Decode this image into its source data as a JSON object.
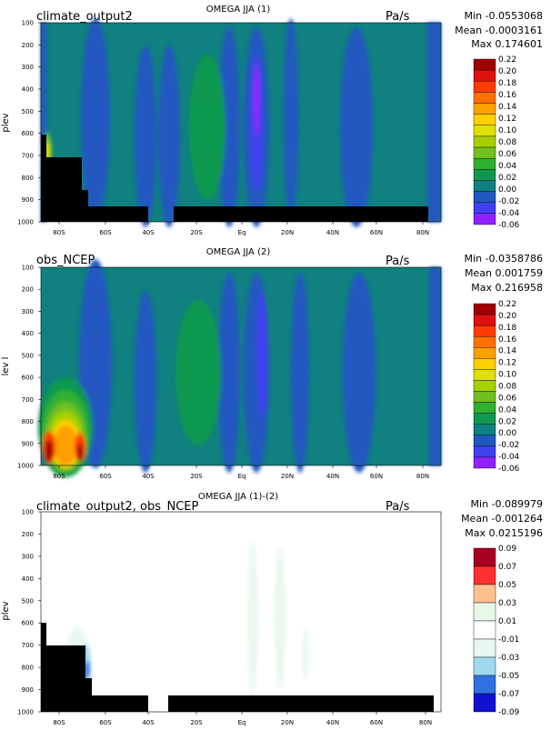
{
  "chart_data": [
    {
      "type": "contour",
      "dataset": "climate_output2",
      "title": "OMEGA JJA (1)",
      "units": "Pa/s",
      "ylabel": "plev",
      "stats": {
        "min": "Min -0.0553068",
        "mean": "Mean -0.0003161",
        "max": "Max 0.174601"
      },
      "x_ticks": [
        "80S",
        "60S",
        "40S",
        "20S",
        "Eq",
        "20N",
        "40N",
        "60N",
        "80N"
      ],
      "y_ticks": [
        "100",
        "200",
        "300",
        "400",
        "500",
        "600",
        "700",
        "800",
        "900",
        "1000"
      ],
      "colorbar": {
        "levels": [
          "0.22",
          "0.20",
          "0.18",
          "0.16",
          "0.14",
          "0.12",
          "0.10",
          "0.08",
          "0.06",
          "0.04",
          "0.02",
          "0.00",
          "-0.02",
          "-0.04",
          "-0.06"
        ],
        "colors": [
          "#a00000",
          "#e01010",
          "#ff3c00",
          "#ff7000",
          "#ffa000",
          "#ffd000",
          "#e0e000",
          "#a8d000",
          "#70c020",
          "#30b030",
          "#109850",
          "#108080",
          "#2058c0",
          "#4040f0",
          "#9020ff"
        ]
      }
    },
    {
      "type": "contour",
      "dataset": "obs_NCEP",
      "title": "OMEGA JJA (2)",
      "units": "Pa/s",
      "ylabel": "lev l",
      "stats": {
        "min": "Min -0.0358786",
        "mean": "Mean 0.001759",
        "max": "Max 0.216958"
      },
      "x_ticks": [
        "80S",
        "60S",
        "40S",
        "20S",
        "Eq",
        "20N",
        "40N",
        "60N",
        "80N"
      ],
      "y_ticks": [
        "100",
        "200",
        "300",
        "400",
        "500",
        "600",
        "700",
        "800",
        "900",
        "1000"
      ],
      "colorbar": {
        "levels": [
          "0.22",
          "0.20",
          "0.18",
          "0.16",
          "0.14",
          "0.12",
          "0.10",
          "0.08",
          "0.06",
          "0.04",
          "0.02",
          "0.00",
          "-0.02",
          "-0.04",
          "-0.06"
        ],
        "colors": [
          "#a00000",
          "#e01010",
          "#ff3c00",
          "#ff7000",
          "#ffa000",
          "#ffd000",
          "#e0e000",
          "#a8d000",
          "#70c020",
          "#30b030",
          "#109850",
          "#108080",
          "#2058c0",
          "#4040f0",
          "#9020ff"
        ]
      }
    },
    {
      "type": "contour",
      "dataset": "climate_output2, obs_NCEP",
      "title": "OMEGA JJA (1)-(2)",
      "units": "Pa/s",
      "ylabel": "plev",
      "stats": {
        "min": "Min -0.089979",
        "mean": "Mean -0.001264",
        "max": "Max 0.0215196"
      },
      "x_ticks": [
        "80S",
        "60S",
        "40S",
        "20S",
        "Eq",
        "20N",
        "40N",
        "60N",
        "80N"
      ],
      "y_ticks": [
        "100",
        "200",
        "300",
        "400",
        "500",
        "600",
        "700",
        "800",
        "900",
        "1000"
      ],
      "colorbar": {
        "levels": [
          "0.09",
          "0.07",
          "0.05",
          "0.03",
          "0.01",
          "-0.01",
          "-0.03",
          "-0.05",
          "-0.07",
          "-0.09"
        ],
        "colors": [
          "#a80020",
          "#ff3030",
          "#ffc090",
          "#e8f8e8",
          "#ffffff",
          "#e8f8f0",
          "#a0d8f0",
          "#3070e0",
          "#1010d0"
        ]
      }
    }
  ]
}
